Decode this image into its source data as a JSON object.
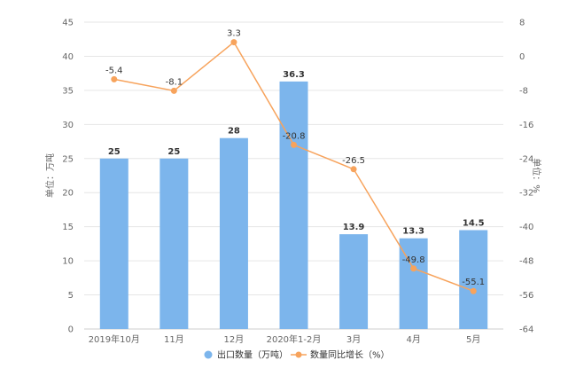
{
  "chart_data": {
    "type": "bar",
    "categories": [
      "2019年10月",
      "11月",
      "12月",
      "2020年1-2月",
      "3月",
      "4月",
      "5月"
    ],
    "series": [
      {
        "name": "出口数量（万吨）",
        "kind": "bar",
        "axis": "left",
        "values": [
          25,
          25,
          28,
          36.3,
          13.9,
          13.3,
          14.5
        ],
        "labels": [
          "25",
          "25",
          "28",
          "36.3",
          "13.9",
          "13.3",
          "14.5"
        ],
        "color": "#7cb5ec"
      },
      {
        "name": "数量同比增长（%）",
        "kind": "line",
        "axis": "right",
        "values": [
          -5.4,
          -8.1,
          3.3,
          -20.8,
          -26.5,
          -49.8,
          -55.1
        ],
        "labels": [
          "-5.4",
          "-8.1",
          "3.3",
          "-20.8",
          "-26.5",
          "-49.8",
          "-55.1"
        ],
        "color": "#f7a35c"
      }
    ],
    "y_left": {
      "label": "单位：万吨",
      "ylim": [
        0,
        45
      ],
      "ticks": [
        "0",
        "5",
        "10",
        "15",
        "20",
        "25",
        "30",
        "35",
        "40",
        "45"
      ]
    },
    "y_right": {
      "label": "单位：%",
      "ylim": [
        -64,
        8
      ],
      "ticks": [
        "-64",
        "-56",
        "-48",
        "-40",
        "-32",
        "-24",
        "-16",
        "-8",
        "0",
        "8"
      ]
    },
    "grid": true,
    "legend_position": "bottom-center"
  }
}
